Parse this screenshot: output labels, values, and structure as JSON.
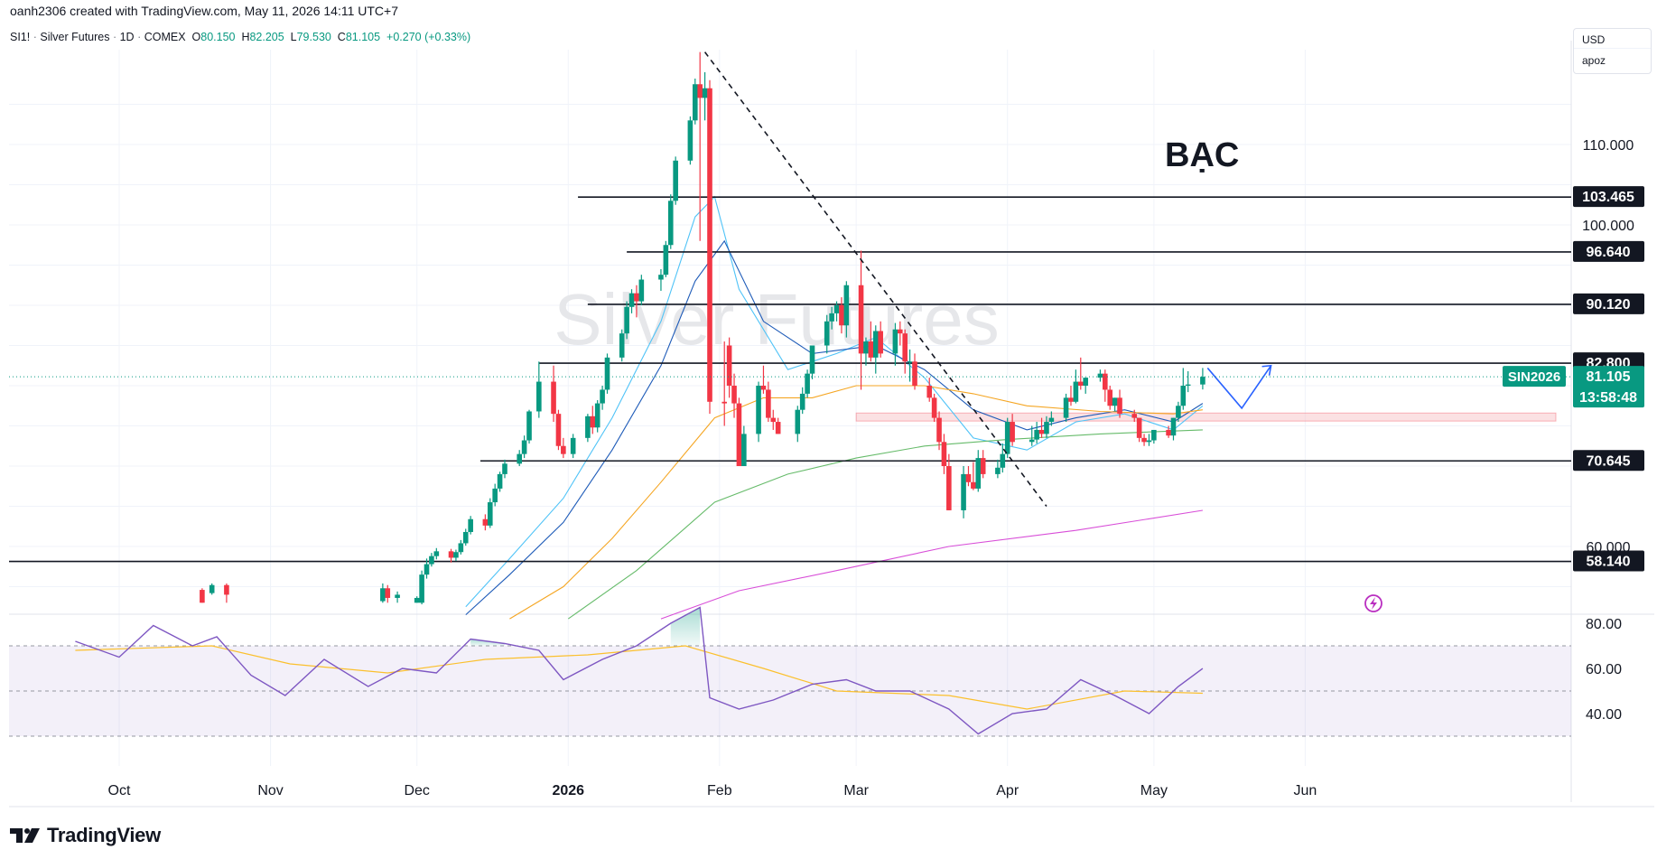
{
  "header": {
    "created_by": "oanh2306 created with TradingView.com, May 11, 2026 14:11 UTC+7"
  },
  "symbol_bar": {
    "symbol": "SI1!",
    "name": "Silver Futures",
    "interval": "1D",
    "exchange": "COMEX",
    "open_label": "O",
    "open": "80.150",
    "high_label": "H",
    "high": "82.205",
    "low_label": "L",
    "low": "79.530",
    "close_label": "C",
    "close": "81.105",
    "change": "+0.270 (+0.33%)"
  },
  "currency_box": {
    "currency": "USD",
    "user": "apoz"
  },
  "watermark": "Silver Futures",
  "annotation_title": "BẠC",
  "price_axis": {
    "labels": [
      "110.000",
      "100.000",
      "60.000"
    ]
  },
  "levels": [
    {
      "value": 103.465,
      "label": "103.465"
    },
    {
      "value": 96.64,
      "label": "96.640"
    },
    {
      "value": 90.12,
      "label": "90.120"
    },
    {
      "value": 82.8,
      "label": "82.800"
    },
    {
      "value": 70.645,
      "label": "70.645"
    },
    {
      "value": 58.14,
      "label": "58.140"
    }
  ],
  "current_price": {
    "ticker": "SIN2026",
    "price": "81.105",
    "countdown": "13:58:48",
    "color": "#089981"
  },
  "rsi_axis": {
    "labels": [
      "80.00",
      "60.00",
      "40.00"
    ]
  },
  "time_axis": {
    "labels": [
      "Oct",
      "Nov",
      "Dec",
      "2026",
      "Feb",
      "Mar",
      "Apr",
      "May",
      "Jun"
    ]
  },
  "footer": {
    "brand": "TradingView"
  },
  "colors": {
    "up": "#089981",
    "down": "#f23645",
    "rsi": "#7e57c2",
    "rsi_ma": "#fbc02d",
    "projection": "#2962ff"
  },
  "chart_data": [
    {
      "type": "candlestick",
      "x": [
        "2025-12-17",
        "2025-12-18",
        "2025-12-19",
        "2025-12-22",
        "2025-12-23",
        "2025-12-24",
        "2025-12-26",
        "2025-12-29",
        "2025-12-30",
        "2025-12-31",
        "2026-01-02",
        "2026-01-05",
        "2026-01-06",
        "2026-01-07",
        "2026-01-08",
        "2026-01-09",
        "2026-01-12",
        "2026-01-13",
        "2026-01-14",
        "2026-01-15",
        "2026-01-16",
        "2026-01-20",
        "2026-01-21",
        "2026-01-22",
        "2026-01-23",
        "2026-01-26",
        "2026-01-27",
        "2026-01-28",
        "2026-01-29",
        "2026-01-30",
        "2026-02-02",
        "2026-02-03",
        "2026-02-04",
        "2026-02-05",
        "2026-02-06",
        "2026-02-09",
        "2026-02-10",
        "2026-02-11",
        "2026-02-12",
        "2026-02-13",
        "2026-02-17",
        "2026-02-18",
        "2026-02-19",
        "2026-02-20",
        "2026-02-23",
        "2026-02-24",
        "2026-02-25",
        "2026-02-26",
        "2026-02-27",
        "2026-03-02",
        "2026-03-03",
        "2026-03-04",
        "2026-03-05",
        "2026-03-06",
        "2026-03-09",
        "2026-03-10",
        "2026-03-11",
        "2026-03-12",
        "2026-03-13",
        "2026-03-16",
        "2026-03-17",
        "2026-03-18",
        "2026-03-19",
        "2026-03-20",
        "2026-03-23",
        "2026-03-24",
        "2026-03-25",
        "2026-03-26",
        "2026-03-27",
        "2026-03-30",
        "2026-03-31",
        "2026-04-01",
        "2026-04-02",
        "2026-04-06",
        "2026-04-07",
        "2026-04-08",
        "2026-04-09",
        "2026-04-10",
        "2026-04-13",
        "2026-04-14",
        "2026-04-15",
        "2026-04-16",
        "2026-04-17",
        "2026-04-20",
        "2026-04-21",
        "2026-04-22",
        "2026-04-23",
        "2026-04-24",
        "2026-04-27",
        "2026-04-28",
        "2026-04-29",
        "2026-04-30",
        "2026-05-01",
        "2026-05-04",
        "2026-05-05",
        "2026-05-06",
        "2026-05-07",
        "2026-05-08",
        "2026-05-11"
      ],
      "open": [
        65.5,
        67.2,
        69.0,
        70.3,
        71.5,
        73.2,
        76.8,
        80.5,
        76.5,
        72.5,
        71.5,
        73.5,
        76.2,
        74.8,
        77.8,
        79.5,
        83.5,
        86.5,
        89.8,
        91.5,
        90.5,
        93.2,
        93.8,
        97.5,
        103.0,
        108.0,
        113.0,
        117.5,
        115.8,
        117.0,
        78.0,
        85.0,
        80.0,
        77.8,
        70.0,
        74.0,
        80.0,
        79.5,
        76.0,
        75.5,
        74.0,
        77.0,
        79.0,
        81.5,
        85.0,
        88.0,
        89.0,
        90.0,
        87.5,
        92.5,
        84.0,
        85.5,
        83.5,
        86.8,
        84.0,
        87.0,
        86.5,
        83.0,
        83.0,
        80.0,
        78.5,
        76.0,
        73.0,
        70.0,
        64.5,
        69.0,
        68.0,
        67.2,
        71.0,
        69.0,
        69.8,
        71.5,
        75.5,
        73.0,
        73.3,
        74.5,
        74.0,
        75.5,
        76.0,
        78.5,
        78.0,
        80.5,
        80.0,
        81.0,
        81.5,
        79.5,
        77.5,
        78.5,
        76.5,
        76.0,
        73.5,
        73.0,
        73.2,
        74.5,
        73.8,
        76.0,
        77.5,
        80.0,
        80.15
      ],
      "high": [
        67.8,
        69.3,
        70.8,
        72.0,
        73.8,
        77.0,
        83.0,
        82.5,
        77.0,
        73.5,
        74.0,
        76.5,
        77.5,
        78.2,
        80.0,
        84.0,
        87.0,
        90.5,
        92.0,
        92.5,
        93.8,
        94.5,
        98.0,
        103.8,
        108.5,
        113.5,
        118.2,
        121.5,
        119.0,
        118.0,
        85.5,
        86.0,
        81.5,
        78.5,
        75.0,
        80.5,
        82.5,
        80.5,
        77.0,
        76.0,
        77.5,
        79.8,
        82.0,
        85.0,
        88.8,
        89.8,
        90.5,
        91.0,
        93.0,
        96.8,
        86.0,
        88.0,
        87.5,
        88.0,
        87.8,
        88.0,
        87.0,
        84.5,
        84.0,
        81.0,
        79.0,
        76.8,
        74.0,
        71.5,
        70.0,
        70.0,
        70.5,
        72.0,
        72.0,
        70.8,
        72.8,
        76.0,
        76.5,
        75.0,
        75.5,
        76.0,
        76.2,
        76.8,
        79.0,
        80.0,
        82.0,
        83.5,
        81.0,
        82.0,
        82.0,
        80.0,
        78.5,
        79.5,
        77.0,
        76.0,
        74.0,
        74.0,
        74.0,
        75.0,
        76.0,
        78.0,
        82.2,
        81.8,
        82.205
      ],
      "low": [
        65.0,
        66.8,
        68.5,
        70.0,
        71.0,
        72.8,
        76.0,
        75.5,
        72.0,
        71.0,
        71.0,
        73.0,
        74.0,
        74.2,
        77.0,
        79.0,
        83.0,
        85.8,
        89.0,
        88.5,
        90.0,
        91.8,
        93.5,
        97.0,
        102.5,
        107.5,
        112.5,
        98.0,
        113.0,
        76.5,
        75.0,
        78.5,
        76.0,
        70.0,
        70.0,
        73.0,
        79.0,
        75.5,
        74.5,
        74.0,
        73.0,
        76.5,
        78.5,
        80.8,
        84.0,
        87.0,
        88.0,
        86.5,
        86.0,
        79.5,
        82.5,
        83.0,
        81.5,
        83.5,
        82.5,
        85.0,
        81.5,
        80.5,
        79.5,
        78.0,
        75.5,
        72.0,
        69.0,
        64.5,
        63.5,
        67.5,
        67.0,
        66.8,
        68.5,
        68.5,
        69.2,
        71.0,
        72.5,
        72.5,
        72.8,
        73.5,
        73.5,
        75.0,
        75.5,
        77.5,
        77.8,
        79.5,
        79.0,
        80.5,
        78.0,
        77.0,
        76.8,
        76.0,
        75.5,
        73.0,
        72.5,
        72.5,
        72.8,
        73.5,
        73.2,
        75.5,
        77.0,
        79.2,
        79.53
      ],
      "close": [
        67.2,
        69.0,
        70.3,
        71.5,
        73.2,
        76.8,
        80.5,
        76.5,
        72.5,
        71.5,
        73.5,
        76.2,
        74.8,
        77.8,
        79.5,
        83.5,
        86.5,
        89.8,
        91.5,
        90.5,
        93.2,
        93.8,
        97.5,
        103.0,
        108.0,
        113.0,
        117.5,
        115.8,
        117.0,
        78.0,
        77.8,
        80.0,
        77.8,
        70.0,
        74.0,
        80.0,
        79.5,
        76.0,
        75.5,
        74.0,
        77.0,
        79.0,
        81.5,
        85.0,
        88.0,
        89.0,
        90.0,
        87.5,
        92.5,
        84.0,
        85.5,
        83.5,
        86.8,
        84.0,
        87.0,
        86.5,
        83.0,
        83.0,
        80.0,
        78.5,
        76.0,
        73.0,
        70.0,
        64.5,
        69.0,
        68.0,
        67.2,
        71.0,
        69.0,
        69.8,
        71.5,
        75.5,
        73.0,
        73.3,
        74.5,
        74.0,
        75.5,
        76.0,
        78.5,
        78.0,
        80.5,
        80.0,
        81.0,
        81.5,
        79.5,
        77.5,
        78.5,
        76.5,
        76.0,
        73.5,
        73.0,
        73.2,
        74.5,
        73.8,
        76.0,
        77.5,
        80.0,
        80.15,
        81.105
      ]
    },
    {
      "type": "line",
      "name": "RSI",
      "range": [
        20,
        95
      ],
      "bands": [
        70,
        50,
        30
      ],
      "x": [
        "2025-09-22",
        "2025-10-01",
        "2025-10-08",
        "2025-10-16",
        "2025-10-21",
        "2025-10-28",
        "2025-11-04",
        "2025-11-12",
        "2025-11-21",
        "2025-11-28",
        "2025-12-05",
        "2025-12-12",
        "2025-12-19",
        "2025-12-26",
        "2025-12-31",
        "2026-01-08",
        "2026-01-15",
        "2026-01-22",
        "2026-01-28",
        "2026-01-30",
        "2026-02-05",
        "2026-02-12",
        "2026-02-20",
        "2026-02-27",
        "2026-03-05",
        "2026-03-12",
        "2026-03-20",
        "2026-03-26",
        "2026-04-02",
        "2026-04-09",
        "2026-04-16",
        "2026-04-23",
        "2026-04-30",
        "2026-05-06",
        "2026-05-11"
      ],
      "values": [
        72,
        65,
        79,
        70,
        74,
        57,
        48,
        64,
        52,
        60,
        58,
        73,
        71,
        68,
        55,
        64,
        70,
        80,
        87,
        47,
        42,
        46,
        53,
        55,
        50,
        50,
        42,
        31,
        40,
        42,
        55,
        48,
        40,
        52,
        60
      ]
    }
  ]
}
